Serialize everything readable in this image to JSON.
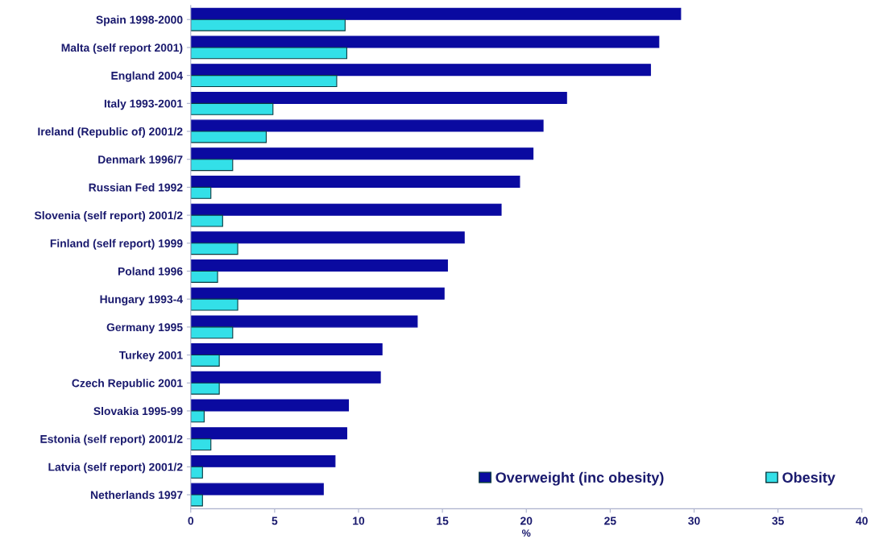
{
  "chart_data": {
    "type": "bar",
    "orientation": "horizontal",
    "xlabel": "%",
    "categories": [
      "Spain 1998-2000",
      "Malta (self report 2001)",
      "England 2004",
      "Italy 1993-2001",
      "Ireland (Republic of) 2001/2",
      "Denmark 1996/7",
      "Russian Fed 1992",
      "Slovenia (self report) 2001/2",
      "Finland (self report) 1999",
      "Poland 1996",
      "Hungary 1993-4",
      "Germany 1995",
      "Turkey 2001",
      "Czech Republic 2001",
      "Slovakia 1995-99",
      "Estonia (self report) 2001/2",
      "Latvia (self report) 2001/2",
      "Netherlands 1997"
    ],
    "series": [
      {
        "name": "Overweight (inc obesity)",
        "color": "#0a0aa0",
        "values": [
          29.2,
          27.9,
          27.4,
          22.4,
          21.0,
          20.4,
          19.6,
          18.5,
          16.3,
          15.3,
          15.1,
          13.5,
          11.4,
          11.3,
          9.4,
          9.3,
          8.6,
          7.9
        ]
      },
      {
        "name": "Obesity",
        "color": "#33e0e8",
        "values": [
          9.2,
          9.3,
          8.7,
          4.9,
          4.5,
          2.5,
          1.2,
          1.9,
          2.8,
          1.6,
          2.8,
          2.5,
          1.7,
          1.7,
          0.8,
          1.2,
          0.7,
          0.7
        ]
      }
    ],
    "xlim": [
      0,
      40
    ],
    "xticks": [
      0,
      5,
      10,
      15,
      20,
      25,
      30,
      35,
      40
    ],
    "grid": false,
    "legend": "bottom right"
  }
}
